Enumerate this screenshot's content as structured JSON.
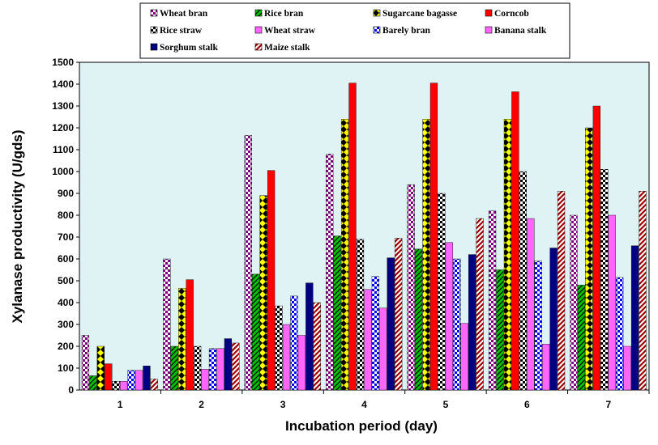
{
  "chart_data": {
    "type": "bar",
    "title": "",
    "xlabel": "Incubation period (day)",
    "ylabel": "Xylanase productivity  (U/gds)",
    "categories": [
      "1",
      "2",
      "3",
      "4",
      "5",
      "6",
      "7"
    ],
    "ylim": [
      0,
      1500
    ],
    "yticks": [
      0,
      100,
      200,
      300,
      400,
      500,
      600,
      700,
      800,
      900,
      1000,
      1100,
      1200,
      1300,
      1400,
      1500
    ],
    "grid": false,
    "legend_position": "top",
    "series": [
      {
        "name": "Wheat bran",
        "color": "#800080",
        "pattern": "checker-purple",
        "values": [
          250,
          600,
          1165,
          1080,
          940,
          820,
          800
        ]
      },
      {
        "name": "Rice bran",
        "color": "#00a000",
        "pattern": "diag-green",
        "values": [
          65,
          200,
          530,
          705,
          645,
          550,
          480
        ]
      },
      {
        "name": "Sugarcane bagasse",
        "color": "#ffff00",
        "pattern": "diamond-yellow",
        "values": [
          200,
          465,
          890,
          1240,
          1240,
          1240,
          1200
        ]
      },
      {
        "name": "Corncob",
        "color": "#ff0000",
        "pattern": "solid-red",
        "values": [
          120,
          505,
          1005,
          1405,
          1405,
          1365,
          1300
        ]
      },
      {
        "name": "Rice straw",
        "color": "#000000",
        "pattern": "checker-black",
        "values": [
          40,
          200,
          385,
          690,
          900,
          1000,
          1010
        ]
      },
      {
        "name": "Wheat straw",
        "color": "#ff66ff",
        "pattern": "solid-pink",
        "values": [
          40,
          95,
          300,
          460,
          675,
          785,
          800
        ]
      },
      {
        "name": "Barely bran",
        "color": "#0000ff",
        "pattern": "checker-blue",
        "values": [
          90,
          190,
          430,
          520,
          600,
          590,
          515
        ]
      },
      {
        "name": "Banana stalk",
        "color": "#ff66ff",
        "pattern": "solid-pink",
        "values": [
          90,
          190,
          250,
          375,
          305,
          210,
          200
        ]
      },
      {
        "name": "Sorghum  stalk",
        "color": "#000080",
        "pattern": "solid-navy",
        "values": [
          110,
          235,
          490,
          605,
          620,
          650,
          660
        ]
      },
      {
        "name": "Maize stalk",
        "color": "#a00000",
        "pattern": "diag-darkred",
        "values": [
          50,
          215,
          400,
          695,
          785,
          910,
          910
        ]
      }
    ]
  }
}
